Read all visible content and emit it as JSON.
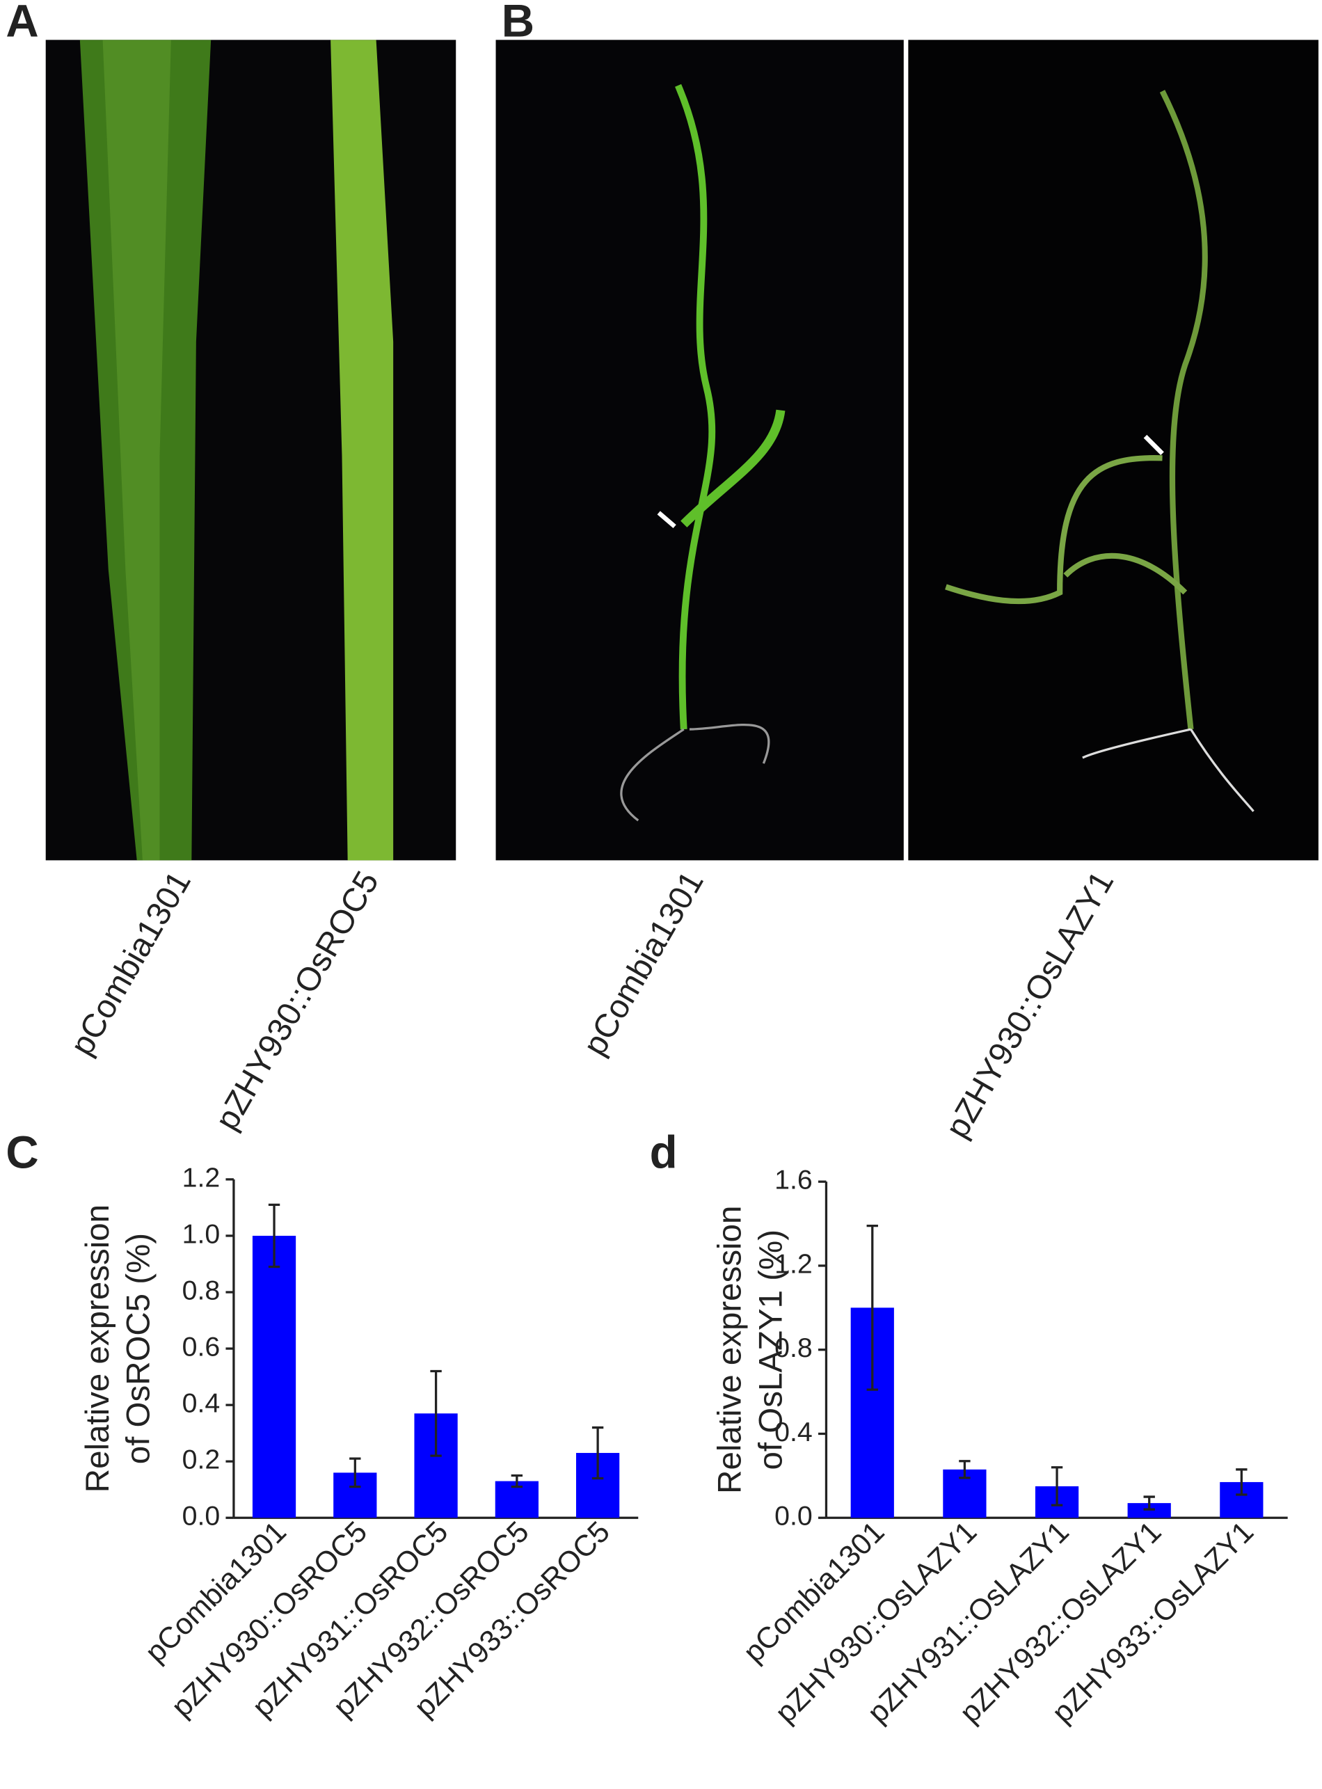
{
  "photo_panels": [
    {
      "letter": "A",
      "labels": [
        "pCombia1301",
        "pZHY930::OsROC5"
      ]
    },
    {
      "letter": "B",
      "labels": [
        "pCombia1301",
        "pZHY930::OsLAZY1"
      ]
    }
  ],
  "chart_data": [
    {
      "type": "bar",
      "panel_label": "C",
      "ylabel": [
        "Relative expression",
        "of OsROC5 (%)"
      ],
      "categories": [
        "pCombia1301",
        "pZHY930::OsROC5",
        "pZHY931::OsROC5",
        "pZHY932::OsROC5",
        "pZHY933::OsROC5"
      ],
      "values": [
        1.0,
        0.16,
        0.37,
        0.13,
        0.23
      ],
      "errors": [
        0.11,
        0.05,
        0.15,
        0.02,
        0.09
      ],
      "color": "#0000ff",
      "ylim": [
        0,
        1.2
      ],
      "yticks": [
        {
          "value": 0,
          "label": "0.0"
        },
        0.2,
        0.4,
        0.6,
        0.8,
        {
          "value": 1,
          "label": "1.0"
        },
        1.2
      ]
    },
    {
      "type": "bar",
      "panel_label": "d",
      "ylabel": [
        "Relative expression",
        "of OsLAZY1 (%)"
      ],
      "categories": [
        "pCombia1301",
        "pZHY930::OsLAZY1",
        "pZHY931::OsLAZY1",
        "pZHY932::OsLAZY1",
        "pZHY933::OsLAZY1"
      ],
      "values": [
        1.0,
        0.23,
        0.15,
        0.07,
        0.17
      ],
      "errors": [
        0.39,
        0.04,
        0.09,
        0.03,
        0.06
      ],
      "color": "#0000ff",
      "ylim": [
        0,
        1.6
      ],
      "yticks": [
        {
          "value": 0,
          "label": "0.0"
        },
        0.4,
        0.8,
        1.2,
        1.6
      ]
    }
  ]
}
